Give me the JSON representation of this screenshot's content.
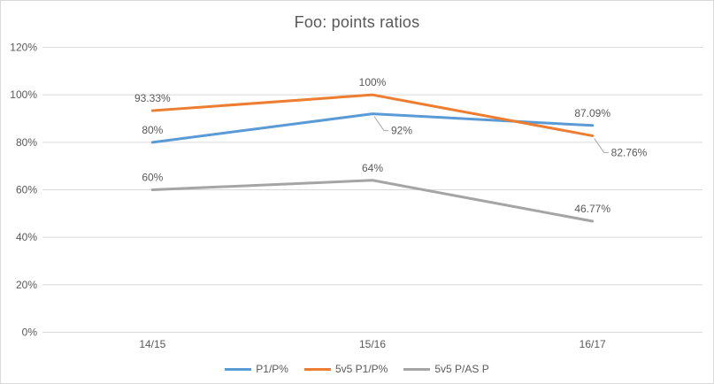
{
  "chart_data": {
    "type": "line",
    "title": "Foo: points ratios",
    "categories": [
      "14/15",
      "15/16",
      "16/17"
    ],
    "series": [
      {
        "name": "P1/P%",
        "color": "#5B9BD5",
        "values": [
          80,
          92,
          87.09
        ],
        "labels": [
          {
            "text": "80%",
            "pos": "above"
          },
          {
            "text": "92%",
            "pos": "below-leader"
          },
          {
            "text": "87.09%",
            "pos": "above"
          }
        ]
      },
      {
        "name": "5v5 P1/P%",
        "color": "#ED7D31",
        "values": [
          93.33,
          100,
          82.76
        ],
        "labels": [
          {
            "text": "93.33%",
            "pos": "above"
          },
          {
            "text": "100%",
            "pos": "above"
          },
          {
            "text": "82.76%",
            "pos": "below-leader"
          }
        ]
      },
      {
        "name": "5v5 P/AS P",
        "color": "#A5A5A5",
        "values": [
          60,
          64,
          46.77
        ],
        "labels": [
          {
            "text": "60%",
            "pos": "above"
          },
          {
            "text": "64%",
            "pos": "above"
          },
          {
            "text": "46.77%",
            "pos": "above"
          }
        ]
      }
    ],
    "xlabel": "",
    "ylabel": "",
    "ylim": [
      0,
      120
    ],
    "y_tick_step": 20,
    "y_tick_labels": [
      "0%",
      "20%",
      "40%",
      "60%",
      "80%",
      "100%",
      "120%"
    ],
    "grid": true,
    "legend_position": "bottom"
  },
  "styles": {
    "background": "#FFFFFF",
    "border_color": "#D9D9D9",
    "grid_color": "#D9D9D9",
    "axis_color": "#D9D9D9",
    "text_color": "#595959",
    "leader_color": "#A6A6A6"
  }
}
